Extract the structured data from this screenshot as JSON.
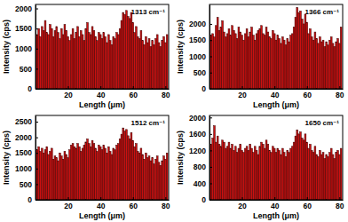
{
  "chart_data": [
    {
      "type": "bar",
      "title": "1313 cm⁻¹",
      "x_label": "Length (μm)",
      "y_label": "Intensity (cps)",
      "color": "#cc1010",
      "x": [
        1,
        2,
        3,
        4,
        5,
        6,
        7,
        8,
        9,
        10,
        11,
        12,
        13,
        14,
        15,
        16,
        17,
        18,
        19,
        20,
        21,
        22,
        23,
        24,
        25,
        26,
        27,
        28,
        29,
        30,
        31,
        32,
        33,
        34,
        35,
        36,
        37,
        38,
        39,
        40,
        41,
        42,
        43,
        44,
        45,
        46,
        47,
        48,
        49,
        50,
        51,
        52,
        53,
        54,
        55,
        56,
        57,
        58,
        59,
        60,
        61,
        62,
        63,
        64,
        65,
        66,
        67,
        68,
        69,
        70,
        71,
        72,
        73,
        74,
        75,
        76,
        77,
        78,
        79,
        80,
        81
      ],
      "values": [
        1350,
        1500,
        1300,
        1550,
        1450,
        1700,
        1400,
        1350,
        1600,
        1500,
        1300,
        1450,
        1550,
        1400,
        1250,
        1500,
        1350,
        1600,
        1450,
        1300,
        1200,
        1350,
        1500,
        1250,
        1400,
        1550,
        1300,
        1450,
        1350,
        1200,
        1500,
        1650,
        1400,
        1350,
        1550,
        1450,
        1300,
        1200,
        1400,
        1350,
        1250,
        1400,
        1300,
        1150,
        1350,
        1200,
        1100,
        1300,
        1250,
        1400,
        1350,
        1500,
        1700,
        1900,
        1850,
        1950,
        1800,
        1750,
        1900,
        1650,
        1400,
        1550,
        1300,
        1250,
        1450,
        1200,
        1100,
        1300,
        1150,
        1250,
        1050,
        1200,
        1100,
        1250,
        1350,
        1150,
        1050,
        1200,
        1300,
        1150,
        1350
      ],
      "xlim": [
        0,
        82
      ],
      "xticks": [
        20,
        40,
        60,
        80
      ],
      "ylim": [
        0,
        2100
      ],
      "yticks": [
        0,
        500,
        1000,
        1500,
        2000
      ]
    },
    {
      "type": "bar",
      "title": "1366 cm⁻¹",
      "x_label": "Length (μm)",
      "y_label": "Intensity (cps)",
      "color": "#cc1010",
      "x": [
        1,
        2,
        3,
        4,
        5,
        6,
        7,
        8,
        9,
        10,
        11,
        12,
        13,
        14,
        15,
        16,
        17,
        18,
        19,
        20,
        21,
        22,
        23,
        24,
        25,
        26,
        27,
        28,
        29,
        30,
        31,
        32,
        33,
        34,
        35,
        36,
        37,
        38,
        39,
        40,
        41,
        42,
        43,
        44,
        45,
        46,
        47,
        48,
        49,
        50,
        51,
        52,
        53,
        54,
        55,
        56,
        57,
        58,
        59,
        60,
        61,
        62,
        63,
        64,
        65,
        66,
        67,
        68,
        69,
        70,
        71,
        72,
        73,
        74,
        75,
        76,
        77,
        78,
        79,
        80,
        81
      ],
      "values": [
        1650,
        1700,
        1600,
        1950,
        2200,
        1800,
        1900,
        2100,
        1750,
        1600,
        1700,
        1850,
        1650,
        1950,
        1800,
        1700,
        1550,
        1900,
        1750,
        1650,
        1500,
        1700,
        1850,
        1600,
        1750,
        1900,
        1650,
        1500,
        1700,
        1800,
        1850,
        1950,
        1700,
        1650,
        1900,
        1750,
        1600,
        1550,
        1800,
        1700,
        1500,
        1650,
        1550,
        1400,
        1600,
        1500,
        1350,
        1550,
        1450,
        1650,
        1700,
        1900,
        2200,
        2500,
        2350,
        2400,
        2150,
        2000,
        2300,
        2050,
        1700,
        1850,
        1600,
        1500,
        1750,
        1550,
        1400,
        1600,
        1450,
        1500,
        1300,
        1450,
        1350,
        1500,
        1600,
        1400,
        1300,
        1450,
        1550,
        1400,
        1900
      ],
      "xlim": [
        0,
        82
      ],
      "xticks": [
        20,
        40,
        60,
        80
      ],
      "ylim": [
        0,
        2600
      ],
      "yticks": [
        0,
        500,
        1000,
        1500,
        2000
      ]
    },
    {
      "type": "bar",
      "title": "1512 cm⁻¹",
      "x_label": "Length (μm)",
      "y_label": "Intensity (cps)",
      "color": "#cc1010",
      "x": [
        1,
        2,
        3,
        4,
        5,
        6,
        7,
        8,
        9,
        10,
        11,
        12,
        13,
        14,
        15,
        16,
        17,
        18,
        19,
        20,
        21,
        22,
        23,
        24,
        25,
        26,
        27,
        28,
        29,
        30,
        31,
        32,
        33,
        34,
        35,
        36,
        37,
        38,
        39,
        40,
        41,
        42,
        43,
        44,
        45,
        46,
        47,
        48,
        49,
        50,
        51,
        52,
        53,
        54,
        55,
        56,
        57,
        58,
        59,
        60,
        61,
        62,
        63,
        64,
        65,
        66,
        67,
        68,
        69,
        70,
        71,
        72,
        73,
        74,
        75,
        76,
        77,
        78,
        79,
        80,
        81
      ],
      "values": [
        1600,
        1700,
        1550,
        1650,
        1500,
        1600,
        1700,
        1450,
        1550,
        1650,
        1300,
        1400,
        1350,
        1250,
        1500,
        1400,
        1300,
        1550,
        1450,
        1350,
        1600,
        1750,
        1800,
        1700,
        1650,
        1800,
        1700,
        1550,
        1650,
        1750,
        1850,
        1950,
        1800,
        1700,
        1900,
        1800,
        1650,
        1550,
        1750,
        1700,
        1600,
        1750,
        1650,
        1500,
        1700,
        1550,
        1450,
        1650,
        1600,
        1750,
        1800,
        1950,
        2100,
        2300,
        2200,
        2250,
        2050,
        1950,
        2150,
        1900,
        1700,
        1800,
        1550,
        1500,
        1650,
        1450,
        1300,
        1500,
        1350,
        1400,
        1250,
        1350,
        1150,
        1300,
        1400,
        1200,
        1100,
        1250,
        1400,
        1300,
        1500
      ],
      "xlim": [
        0,
        82
      ],
      "xticks": [
        20,
        40,
        60,
        80
      ],
      "ylim": [
        0,
        2700
      ],
      "yticks": [
        0,
        500,
        1000,
        1500,
        2000,
        2500
      ]
    },
    {
      "type": "bar",
      "title": "1650 cm⁻¹",
      "x_label": "Length (μm)",
      "y_label": "Intensity (cps)",
      "color": "#cc1010",
      "x": [
        1,
        2,
        3,
        4,
        5,
        6,
        7,
        8,
        9,
        10,
        11,
        12,
        13,
        14,
        15,
        16,
        17,
        18,
        19,
        20,
        21,
        22,
        23,
        24,
        25,
        26,
        27,
        28,
        29,
        30,
        31,
        32,
        33,
        34,
        35,
        36,
        37,
        38,
        39,
        40,
        41,
        42,
        43,
        44,
        45,
        46,
        47,
        48,
        49,
        50,
        51,
        52,
        53,
        54,
        55,
        56,
        57,
        58,
        59,
        60,
        61,
        62,
        63,
        64,
        65,
        66,
        67,
        68,
        69,
        70,
        71,
        72,
        73,
        74,
        75,
        76,
        77,
        78,
        79,
        80,
        81
      ],
      "values": [
        1350,
        1500,
        1800,
        1400,
        1550,
        1350,
        1300,
        1450,
        1400,
        1250,
        1300,
        1400,
        1250,
        1350,
        1200,
        1300,
        1150,
        1250,
        1350,
        1200,
        1150,
        1250,
        1300,
        1200,
        1350,
        1250,
        1150,
        1300,
        1200,
        1100,
        1300,
        1400,
        1350,
        1250,
        1450,
        1350,
        1200,
        1150,
        1300,
        1250,
        1150,
        1250,
        1200,
        1100,
        1250,
        1150,
        1050,
        1200,
        1150,
        1250,
        1300,
        1400,
        1550,
        1700,
        1600,
        1650,
        1500,
        1450,
        1600,
        1400,
        1250,
        1350,
        1200,
        1150,
        1300,
        1100,
        1050,
        1200,
        1100,
        1150,
        1000,
        1100,
        1050,
        1150,
        1250,
        1100,
        1000,
        1150,
        1200,
        1100,
        1250
      ],
      "xlim": [
        0,
        82
      ],
      "xticks": [
        20,
        40,
        60,
        80
      ],
      "ylim": [
        0,
        2050
      ],
      "yticks": [
        0,
        400,
        800,
        1200,
        1600,
        2000
      ]
    }
  ]
}
